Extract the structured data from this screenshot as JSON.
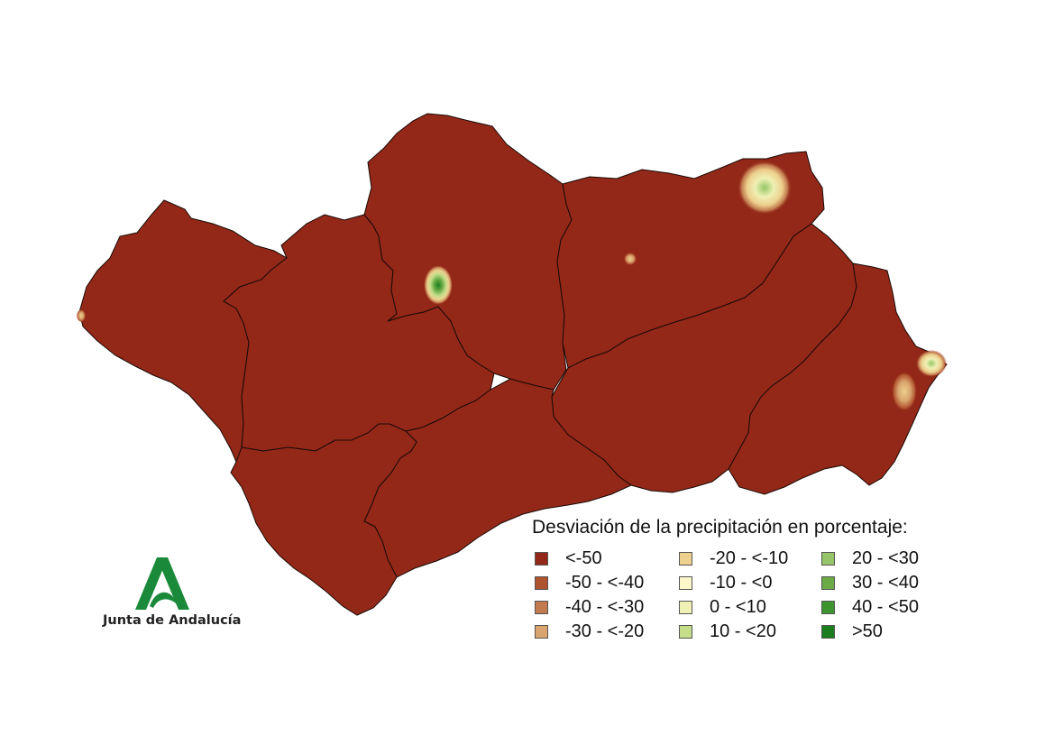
{
  "map": {
    "region": "Andalucía",
    "base_class_color": "#932818"
  },
  "legend": {
    "title": "Desviación de la precipitación en porcentaje:",
    "items": [
      {
        "label": "<-50",
        "color": "#932818"
      },
      {
        "label": "-50 - <-40",
        "color": "#b0532f"
      },
      {
        "label": "-40 - <-30",
        "color": "#c27a4e"
      },
      {
        "label": "-30 - <-20",
        "color": "#d9a46e"
      },
      {
        "label": "-20 - <-10",
        "color": "#edd08e"
      },
      {
        "label": "-10 - <0",
        "color": "#fbf7c9"
      },
      {
        "label": "0 - <10",
        "color": "#eef0b4"
      },
      {
        "label": "10 - <20",
        "color": "#c4de8a"
      },
      {
        "label": "20 - <30",
        "color": "#95c566"
      },
      {
        "label": "30 - <40",
        "color": "#6aab46"
      },
      {
        "label": "40 - <50",
        "color": "#3e9530"
      },
      {
        "label": ">50",
        "color": "#1a7e1e"
      }
    ]
  },
  "logo": {
    "text": "Junta de Andalucía",
    "color": "#1a8a3a"
  }
}
